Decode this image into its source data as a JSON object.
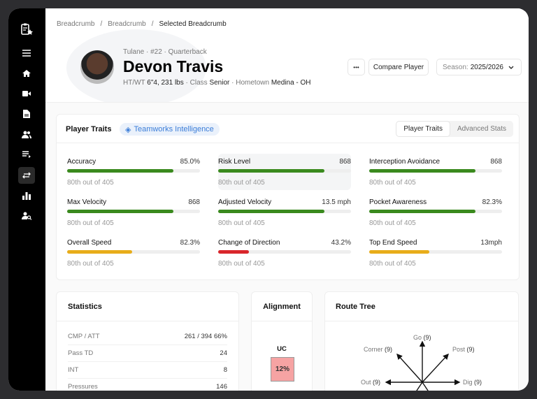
{
  "sidebar": {
    "items": [
      "clipboard-star",
      "menu",
      "home",
      "video",
      "document",
      "users",
      "playlist",
      "transfer",
      "bar-chart",
      "user-search"
    ],
    "active": "transfer"
  },
  "breadcrumb": [
    "Breadcrumb",
    "Breadcrumb",
    "Selected Breadcrumb"
  ],
  "player": {
    "meta": "Tulane · #22 · Quarterback",
    "name": "Devon Travis",
    "htwt_label": "HT/WT",
    "htwt": "6\"4, 231 lbs",
    "class_label": "Class",
    "class": "Senior",
    "hometown_label": "Hometown",
    "hometown": "Medina - OH"
  },
  "actions": {
    "more": "•••",
    "compare": "Compare Player",
    "season_label": "Season:",
    "season": "2025/2026"
  },
  "traits": {
    "title": "Player Traits",
    "badge": "Teamworks Intelligence",
    "tabs": [
      "Player Traits",
      "Advanced Stats"
    ],
    "items": [
      {
        "label": "Accuracy",
        "value": "85.0%",
        "pct": 80,
        "color": "#3a8a1e",
        "rank": "80th out of 405"
      },
      {
        "label": "Risk Level",
        "value": "868",
        "pct": 80,
        "color": "#3a8a1e",
        "rank": "80th out of 405"
      },
      {
        "label": "Interception Avoidance",
        "value": "868",
        "pct": 80,
        "color": "#3a8a1e",
        "rank": "80th out of 405"
      },
      {
        "label": "Max Velocity",
        "value": "868",
        "pct": 80,
        "color": "#3a8a1e",
        "rank": "80th out of 405"
      },
      {
        "label": "Adjusted Velocity",
        "value": "13.5 mph",
        "pct": 80,
        "color": "#3a8a1e",
        "rank": "80th out of 405"
      },
      {
        "label": "Pocket Awareness",
        "value": "82.3%",
        "pct": 80,
        "color": "#3a8a1e",
        "rank": "80th out of 405"
      },
      {
        "label": "Overall Speed",
        "value": "82.3%",
        "pct": 49,
        "color": "#e8ad1a",
        "rank": "80th out of 405"
      },
      {
        "label": "Change of Direction",
        "value": "43.2%",
        "pct": 23,
        "color": "#d9262b",
        "rank": "80th out of 405"
      },
      {
        "label": "Top End Speed",
        "value": "13mph",
        "pct": 45,
        "color": "#e8ad1a",
        "rank": "80th out of 405"
      }
    ]
  },
  "statistics": {
    "title": "Statistics",
    "rows": [
      {
        "k": "CMP / ATT",
        "v": "261 / 394 66%"
      },
      {
        "k": "Pass TD",
        "v": "24"
      },
      {
        "k": "INT",
        "v": "8"
      },
      {
        "k": "Pressures",
        "v": "146"
      }
    ]
  },
  "alignment": {
    "title": "Alignment",
    "label": "UC",
    "value": "12%"
  },
  "route_tree": {
    "title": "Route Tree",
    "routes": [
      {
        "name": "Go",
        "count": "(9)"
      },
      {
        "name": "Corner",
        "count": "(9)"
      },
      {
        "name": "Post",
        "count": "(9)"
      },
      {
        "name": "Out",
        "count": "(9)"
      },
      {
        "name": "Dig",
        "count": "(9)"
      }
    ]
  }
}
